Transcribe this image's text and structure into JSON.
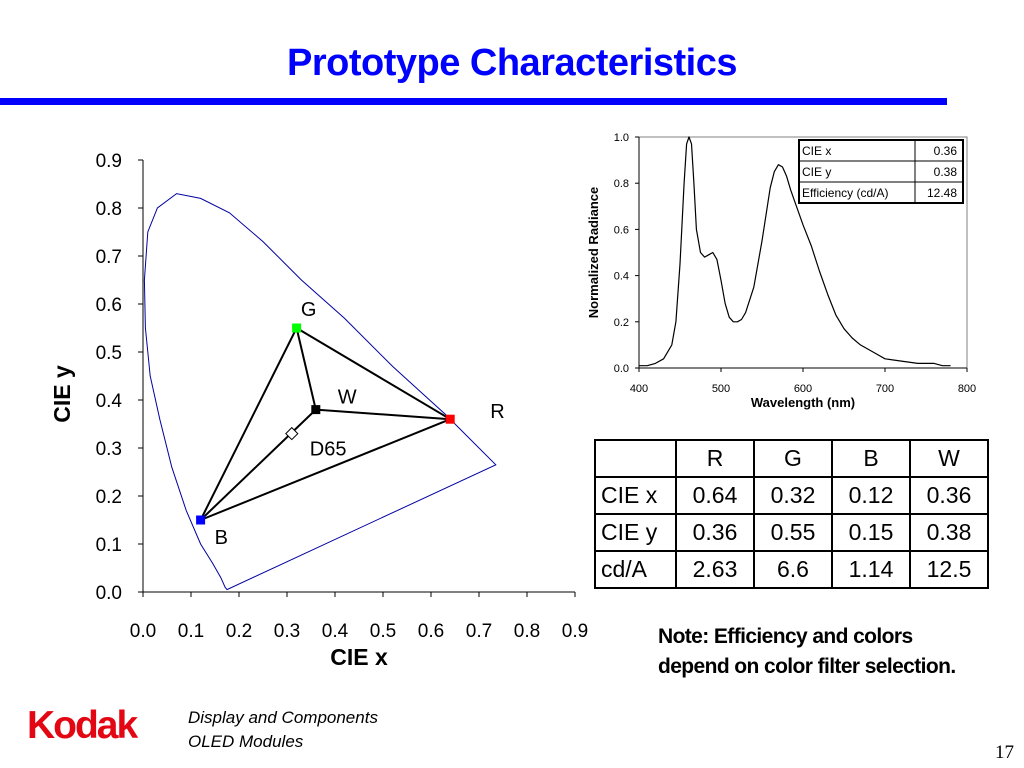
{
  "slide": {
    "title": "Prototype Characteristics",
    "note_lines": [
      "Note:  Efficiency and colors",
      "depend on color filter selection."
    ],
    "logo_text": "Kodak",
    "footer_lines": [
      "Display and Components",
      "OLED Modules"
    ],
    "page_number": "17"
  },
  "colors": {
    "title": "#0000ff",
    "rule": "#0000ff",
    "logo": "#e30613",
    "locus": "#0000a0",
    "red_point": "#ff0000",
    "green_point": "#00ff00",
    "blue_point": "#0000ff"
  },
  "table": {
    "headers": [
      "R",
      "G",
      "B",
      "W"
    ],
    "rows": [
      {
        "label": "CIE x",
        "values": [
          "0.64",
          "0.32",
          "0.12",
          "0.36"
        ]
      },
      {
        "label": "CIE y",
        "values": [
          "0.36",
          "0.55",
          "0.15",
          "0.38"
        ]
      },
      {
        "label": "cd/A",
        "values": [
          "2.63",
          "6.6",
          "1.14",
          "12.5"
        ]
      }
    ]
  },
  "chart_data": [
    {
      "type": "scatter",
      "xlabel": "CIE x",
      "ylabel": "CIE y",
      "xlim": [
        0,
        0.9
      ],
      "ylim": [
        0,
        0.9
      ],
      "xticks": [
        "0.0",
        "0.1",
        "0.2",
        "0.3",
        "0.4",
        "0.5",
        "0.6",
        "0.7",
        "0.8",
        "0.9"
      ],
      "yticks": [
        "0.0",
        "0.1",
        "0.2",
        "0.3",
        "0.4",
        "0.5",
        "0.6",
        "0.7",
        "0.8",
        "0.9"
      ],
      "grid": false,
      "spectral_locus": {
        "x": [
          0.175,
          0.171,
          0.162,
          0.145,
          0.12,
          0.09,
          0.06,
          0.035,
          0.015,
          0.005,
          0.003,
          0.01,
          0.03,
          0.07,
          0.12,
          0.18,
          0.25,
          0.33,
          0.42,
          0.52,
          0.63,
          0.735
        ],
        "y": [
          0.005,
          0.01,
          0.03,
          0.06,
          0.1,
          0.17,
          0.26,
          0.36,
          0.45,
          0.55,
          0.65,
          0.75,
          0.8,
          0.83,
          0.82,
          0.79,
          0.73,
          0.65,
          0.57,
          0.47,
          0.37,
          0.265
        ]
      },
      "points": [
        {
          "label": "G",
          "x": 0.32,
          "y": 0.55,
          "color": "#00ff00",
          "marker": "square"
        },
        {
          "label": "R",
          "x": 0.64,
          "y": 0.36,
          "color": "#ff0000",
          "marker": "square"
        },
        {
          "label": "B",
          "x": 0.12,
          "y": 0.15,
          "color": "#0000ff",
          "marker": "square"
        },
        {
          "label": "W",
          "x": 0.36,
          "y": 0.38,
          "color": "#000000",
          "marker": "square"
        },
        {
          "label": "D65",
          "x": 0.31,
          "y": 0.33,
          "color": "#ffffff",
          "marker": "diamond"
        }
      ]
    },
    {
      "type": "line",
      "xlabel": "Wavelength (nm)",
      "ylabel": "Normalized Radiance",
      "xlim": [
        400,
        800
      ],
      "ylim": [
        0,
        1.0
      ],
      "xticks": [
        "400",
        "500",
        "600",
        "700",
        "800"
      ],
      "yticks": [
        "0.0",
        "0.2",
        "0.4",
        "0.6",
        "0.8",
        "1.0"
      ],
      "grid": false,
      "series": [
        {
          "x": [
            400,
            410,
            420,
            430,
            440,
            445,
            450,
            455,
            458,
            461,
            464,
            467,
            470,
            475,
            480,
            485,
            490,
            495,
            500,
            505,
            510,
            515,
            520,
            525,
            530,
            540,
            550,
            560,
            565,
            570,
            575,
            580,
            585,
            590,
            600,
            610,
            620,
            630,
            640,
            650,
            660,
            670,
            680,
            690,
            700,
            720,
            740,
            760,
            770,
            780
          ],
          "y": [
            0.01,
            0.01,
            0.02,
            0.04,
            0.1,
            0.2,
            0.45,
            0.8,
            0.97,
            1.0,
            0.97,
            0.8,
            0.6,
            0.5,
            0.48,
            0.49,
            0.5,
            0.47,
            0.38,
            0.28,
            0.22,
            0.2,
            0.2,
            0.21,
            0.24,
            0.35,
            0.55,
            0.78,
            0.85,
            0.88,
            0.87,
            0.83,
            0.77,
            0.72,
            0.62,
            0.53,
            0.42,
            0.32,
            0.23,
            0.17,
            0.13,
            0.1,
            0.08,
            0.06,
            0.04,
            0.03,
            0.02,
            0.02,
            0.01,
            0.01
          ]
        }
      ],
      "info_table": [
        {
          "label": "CIE x",
          "value": "0.36"
        },
        {
          "label": "CIE y",
          "value": "0.38"
        },
        {
          "label": "Efficiency (cd/A)",
          "value": "12.48"
        }
      ]
    }
  ]
}
